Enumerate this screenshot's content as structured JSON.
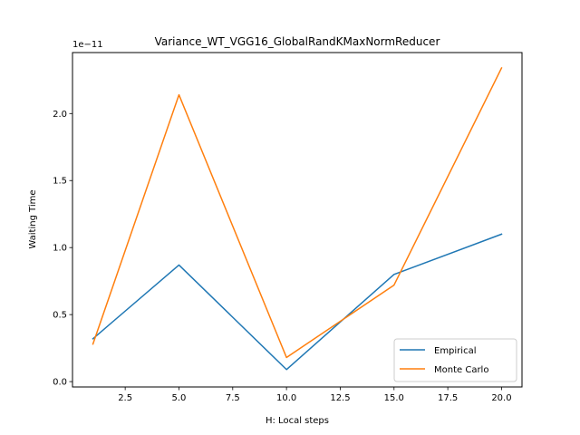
{
  "chart_data": {
    "type": "line",
    "title": "Variance_WT_VGG16_GlobalRandKMaxNormReducer",
    "xlabel": "H: Local steps",
    "ylabel": "Waiting Time",
    "offset_label": "1e−11",
    "x": [
      1,
      5,
      10,
      15,
      20
    ],
    "xlim": [
      0.05,
      20.95
    ],
    "ylim": [
      -0.04,
      2.455
    ],
    "x_ticks": [
      2.5,
      5.0,
      7.5,
      10.0,
      12.5,
      15.0,
      17.5,
      20.0
    ],
    "x_tick_labels": [
      "2.5",
      "5.0",
      "7.5",
      "10.0",
      "12.5",
      "15.0",
      "17.5",
      "20.0"
    ],
    "y_ticks": [
      0.0,
      0.5,
      1.0,
      1.5,
      2.0
    ],
    "y_tick_labels": [
      "0.0",
      "0.5",
      "1.0",
      "1.5",
      "2.0"
    ],
    "grid": false,
    "legend_position": "lower-right",
    "series": [
      {
        "name": "Empirical",
        "color": "#1f77b4",
        "values": [
          0.32,
          0.87,
          0.09,
          0.8,
          1.1
        ]
      },
      {
        "name": "Monte Carlo",
        "color": "#ff7f0e",
        "values": [
          0.28,
          2.14,
          0.18,
          0.72,
          2.34
        ]
      }
    ]
  }
}
